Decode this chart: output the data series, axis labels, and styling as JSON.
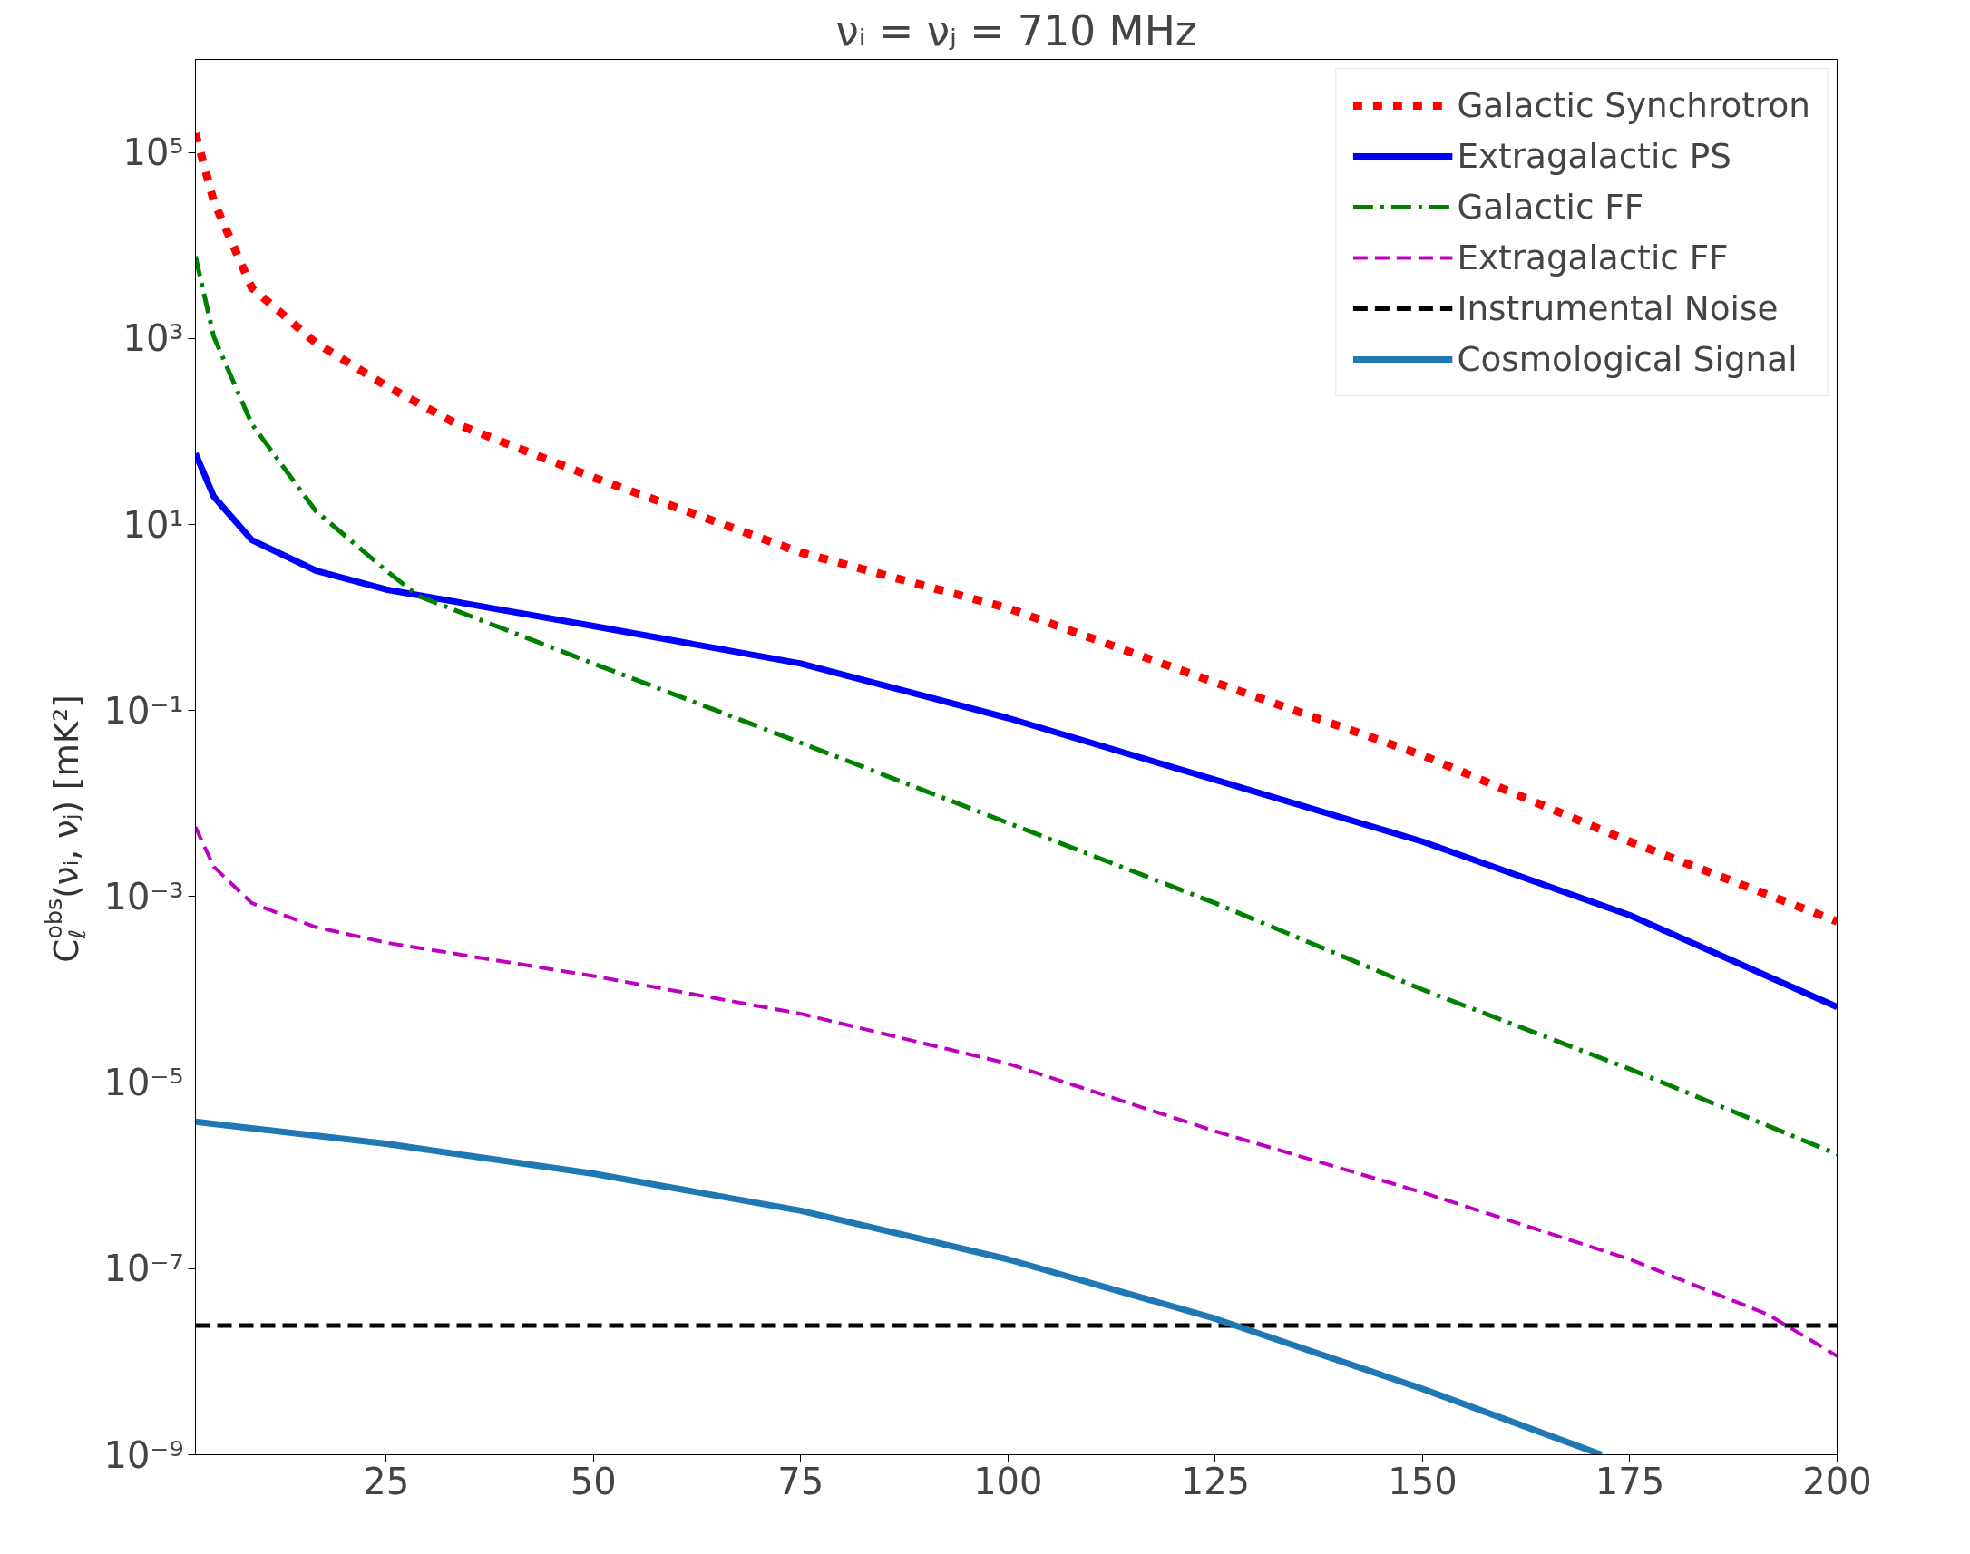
{
  "chart_data": {
    "type": "line",
    "title": "νᵢ = νⱼ = 710 MHz",
    "ylabel": "C$_{ℓ}$$^{obs}$(νᵢ, νⱼ) [mK²]",
    "log": "y",
    "grid": false,
    "legend": "top right",
    "xlim": [
      2,
      200
    ],
    "ylim": [
      1e-09,
      1000000.0
    ],
    "xticks": [
      25,
      50,
      75,
      100,
      125,
      150,
      175,
      200
    ],
    "yticks": [
      {
        "value": 1e-09,
        "label": "10⁻⁹"
      },
      {
        "value": 1e-07,
        "label": "10⁻⁷"
      },
      {
        "value": 1e-05,
        "label": "10⁻⁵"
      },
      {
        "value": 0.001,
        "label": "10⁻³"
      },
      {
        "value": 0.1,
        "label": "10⁻¹"
      },
      {
        "value": 10,
        "label": "10¹"
      },
      {
        "value": 1000,
        "label": "10³"
      },
      {
        "value": 100000,
        "label": "10⁵"
      }
    ],
    "series": [
      {
        "name": "Galactic Synchrotron",
        "color": "#ff0000",
        "line_style": "dotted",
        "x": [
          2,
          4.2,
          8.8,
          16.5,
          25,
          33.5,
          50,
          75,
          100,
          125,
          150,
          175,
          200
        ],
        "values": [
          160000,
          30000,
          3500,
          900,
          310,
          120,
          32,
          5,
          1.26,
          0.2,
          0.033,
          0.0039,
          0.00054
        ]
      },
      {
        "name": "Extragalactic PS",
        "color": "#0000ff",
        "line_style": "solid",
        "x": [
          2,
          4.2,
          8.8,
          16.5,
          25,
          50,
          75,
          100,
          125,
          150,
          175,
          200
        ],
        "values": [
          58,
          20,
          6.8,
          3.2,
          2.0,
          0.81,
          0.32,
          0.083,
          0.018,
          0.0039,
          0.00063,
          6.5e-05
        ]
      },
      {
        "name": "Galactic FF",
        "color": "#008000",
        "line_style": "dashdot",
        "x": [
          2,
          4.2,
          8.8,
          16.5,
          25,
          28.9,
          50,
          75,
          100,
          125,
          150,
          175,
          200
        ],
        "values": [
          7600,
          1050,
          120,
          14,
          3.2,
          1.7,
          0.32,
          0.045,
          0.0062,
          0.00085,
          0.0001,
          1.4e-05,
          1.7e-06
        ]
      },
      {
        "name": "Extragalactic FF",
        "color": "#bf00bf",
        "line_style": "dashed",
        "x": [
          2,
          4.2,
          8.8,
          16.5,
          25,
          50,
          75,
          100,
          125,
          150,
          175,
          191.7,
          200
        ],
        "values": [
          0.0056,
          0.0021,
          0.00085,
          0.00047,
          0.00032,
          0.00014,
          5.5e-05,
          1.6e-05,
          3e-06,
          6.6e-07,
          1.26e-07,
          3.2e-08,
          1.15e-08
        ]
      },
      {
        "name": "Instrumental Noise",
        "color": "#000000",
        "line_style": "dashed",
        "x": [
          2,
          200
        ],
        "values": [
          2.45e-08,
          2.45e-08
        ]
      },
      {
        "name": "Cosmological Signal",
        "color": "#1f77b4",
        "line_style": "solid",
        "x": [
          2,
          25,
          50,
          75,
          100,
          125,
          150,
          171.6
        ],
        "values": [
          3.8e-06,
          2.2e-06,
          1.05e-06,
          4.2e-07,
          1.26e-07,
          2.9e-08,
          5.1e-09,
          1e-09
        ]
      }
    ]
  }
}
